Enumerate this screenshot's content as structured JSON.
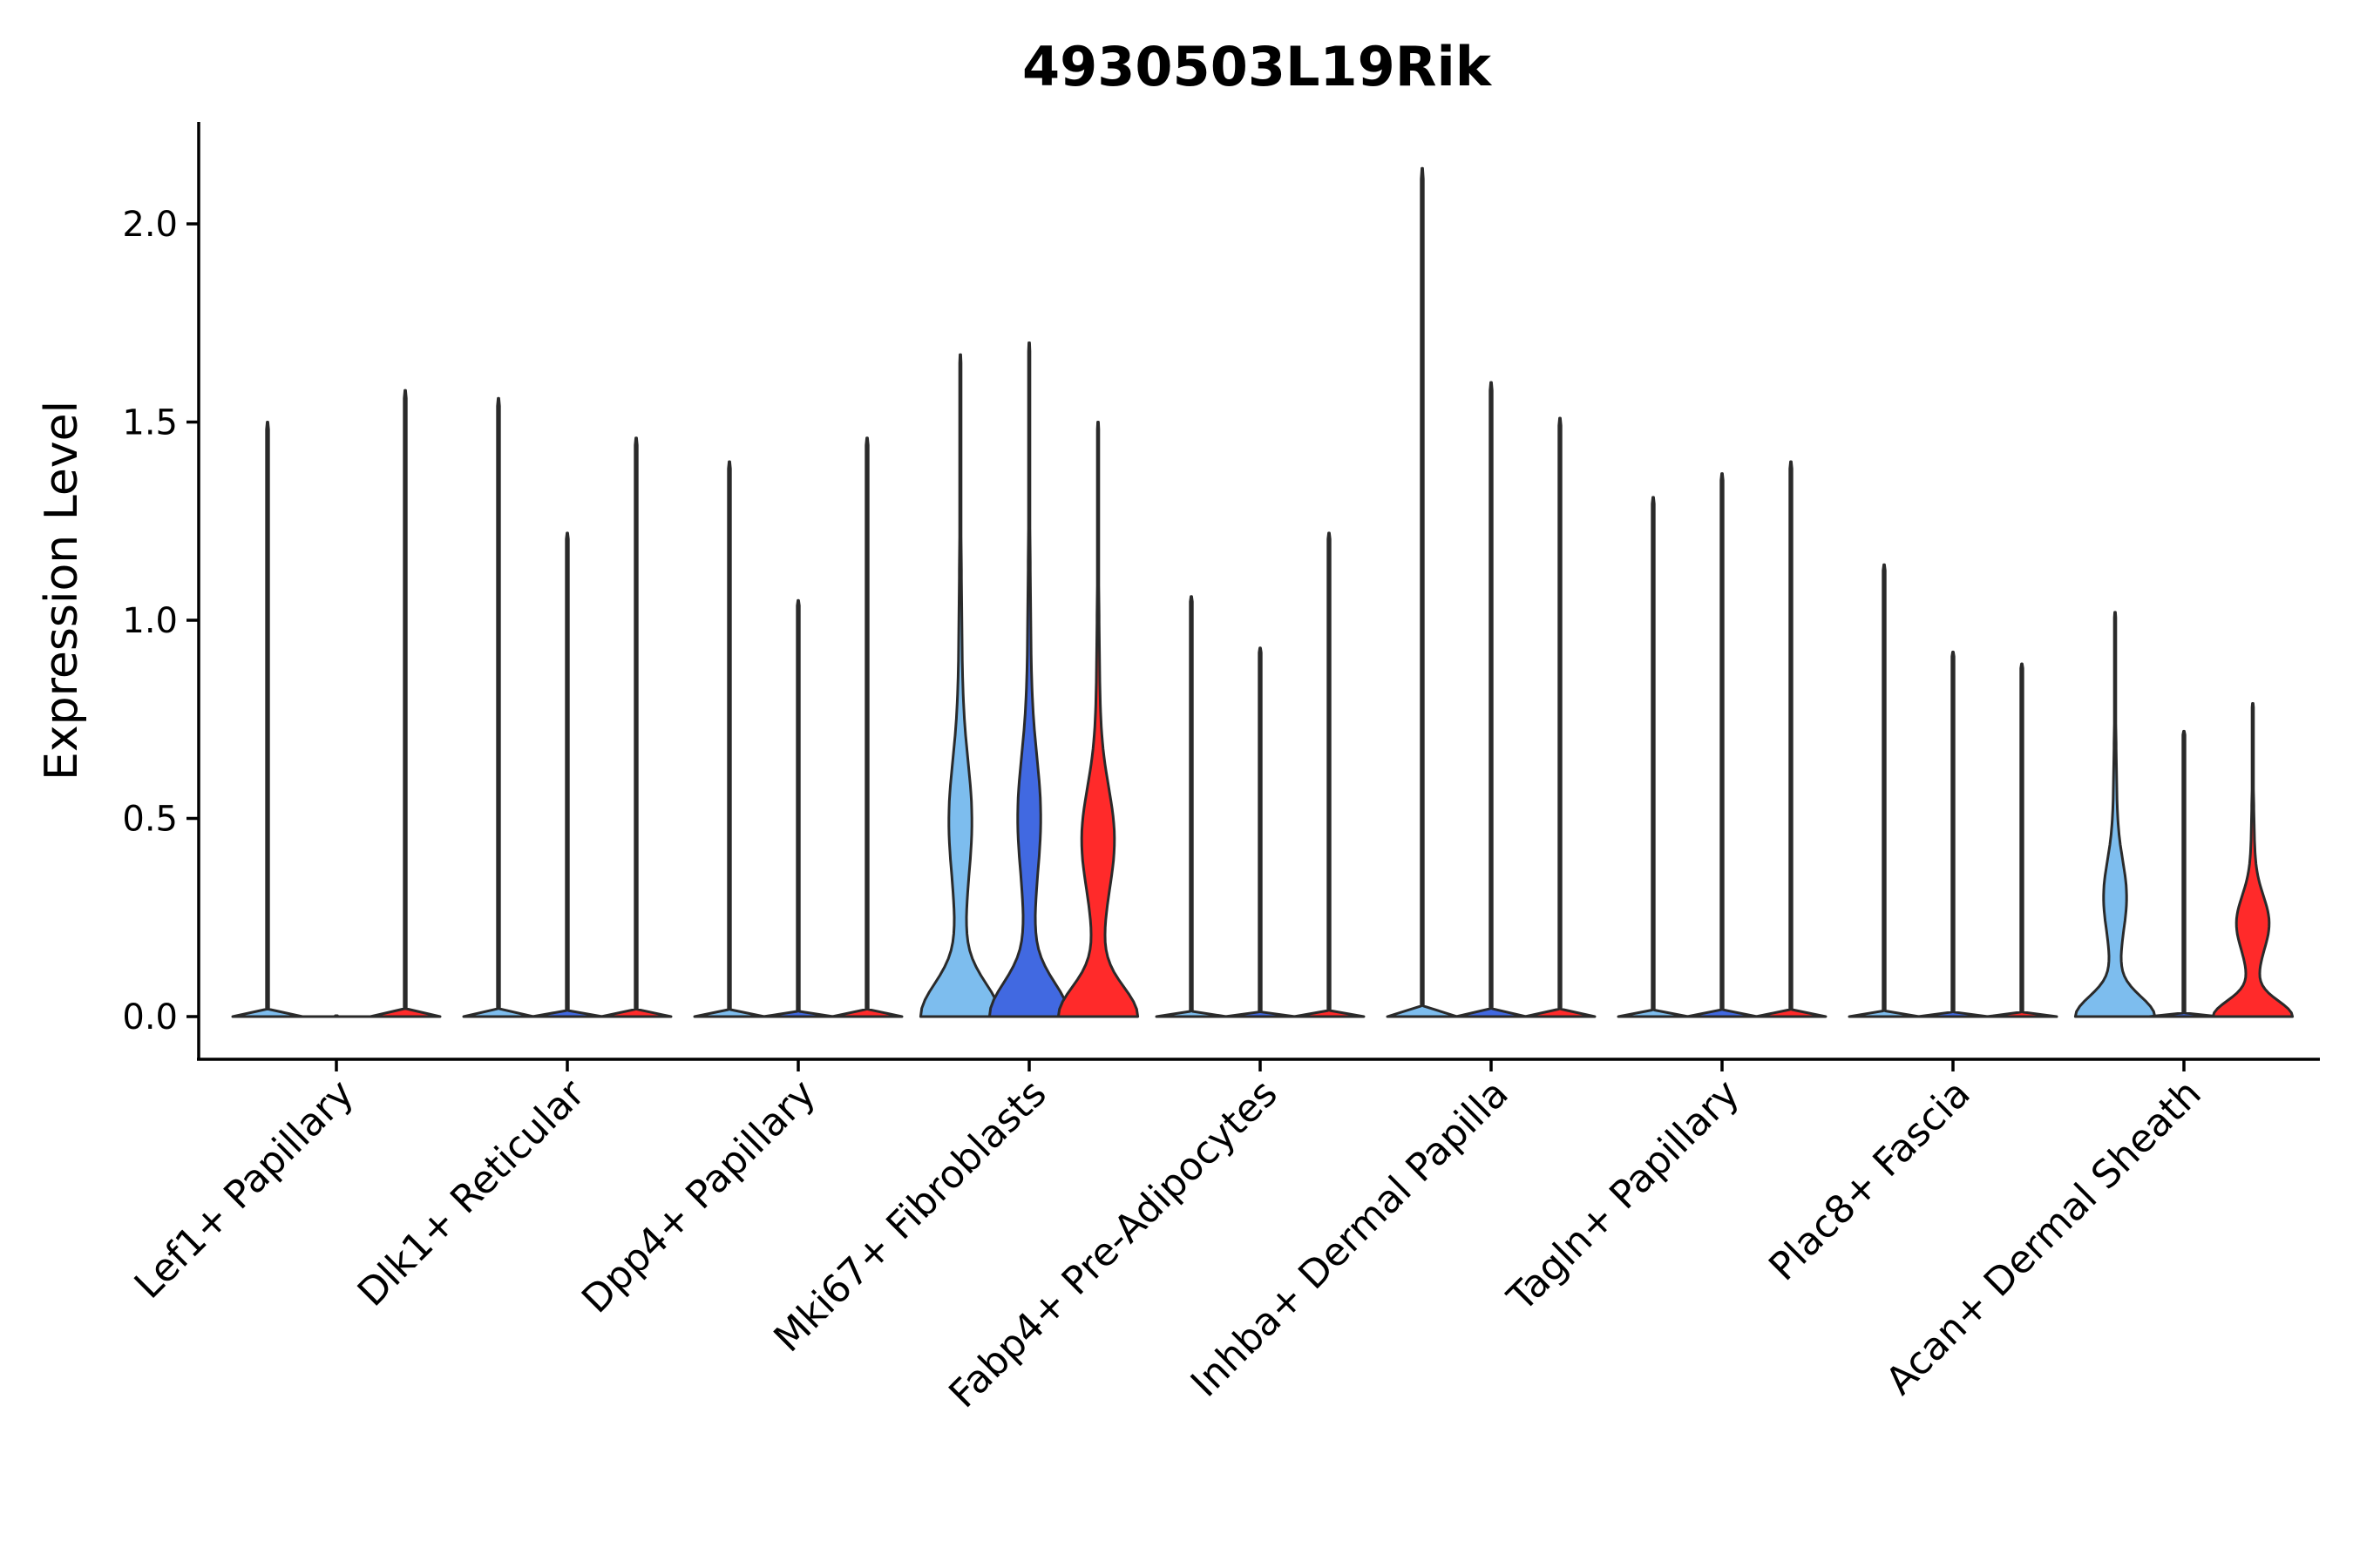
{
  "chart_data": {
    "type": "violin",
    "title": "4930503L19Rik",
    "xlabel": "",
    "ylabel": "Expression Level",
    "ylim": [
      -0.11,
      2.25
    ],
    "yticks": [
      0.0,
      0.5,
      1.0,
      1.5,
      2.0
    ],
    "ytick_labels": [
      "0.0",
      "0.5",
      "1.0",
      "1.5",
      "2.0"
    ],
    "grid": false,
    "legend": "none",
    "series_colors": [
      "#7dbdee",
      "#4169e1",
      "#ff2a2a"
    ],
    "categories": [
      "Lef1+ Papillary",
      "Dlk1+ Reticular",
      "Dpp4+ Papillary",
      "Mki67+ Fibroblasts",
      "Fabp4+ Pre-Adipocytes",
      "Inhba+ Dermal Papilla",
      "Tagln+ Papillary",
      "Plac8+ Fascia",
      "Acan+ Dermal Sheath"
    ],
    "groups": [
      {
        "category": "Lef1+ Papillary",
        "violins": [
          {
            "max": 1.5,
            "shape": "flat"
          },
          {
            "max": 0.0,
            "shape": "flat"
          },
          {
            "max": 1.58,
            "shape": "flat"
          }
        ]
      },
      {
        "category": "Dlk1+ Reticular",
        "violins": [
          {
            "max": 1.56,
            "shape": "flat"
          },
          {
            "max": 1.22,
            "shape": "flat"
          },
          {
            "max": 1.46,
            "shape": "flat"
          }
        ]
      },
      {
        "category": "Dpp4+ Papillary",
        "violins": [
          {
            "max": 1.4,
            "shape": "flat"
          },
          {
            "max": 1.05,
            "shape": "flat"
          },
          {
            "max": 1.46,
            "shape": "flat"
          }
        ]
      },
      {
        "category": "Mki67+ Fibroblasts",
        "violins": [
          {
            "max": 1.67,
            "shape": "dense"
          },
          {
            "max": 1.7,
            "shape": "dense"
          },
          {
            "max": 1.5,
            "shape": "dense"
          }
        ]
      },
      {
        "category": "Fabp4+ Pre-Adipocytes",
        "violins": [
          {
            "max": 1.06,
            "shape": "flat"
          },
          {
            "max": 0.93,
            "shape": "flat"
          },
          {
            "max": 1.22,
            "shape": "flat"
          }
        ]
      },
      {
        "category": "Inhba+ Dermal Papilla",
        "violins": [
          {
            "max": 2.14,
            "shape": "flat"
          },
          {
            "max": 1.6,
            "shape": "flat"
          },
          {
            "max": 1.51,
            "shape": "flat"
          }
        ]
      },
      {
        "category": "Tagln+ Papillary",
        "violins": [
          {
            "max": 1.31,
            "shape": "flat"
          },
          {
            "max": 1.37,
            "shape": "flat"
          },
          {
            "max": 1.4,
            "shape": "flat"
          }
        ]
      },
      {
        "category": "Plac8+ Fascia",
        "violins": [
          {
            "max": 1.14,
            "shape": "flat"
          },
          {
            "max": 0.92,
            "shape": "flat"
          },
          {
            "max": 0.89,
            "shape": "flat"
          }
        ]
      },
      {
        "category": "Acan+ Dermal Sheath",
        "violins": [
          {
            "max": 1.02,
            "shape": "dense"
          },
          {
            "max": 0.72,
            "shape": "flat"
          },
          {
            "max": 0.79,
            "shape": "dense"
          }
        ]
      }
    ]
  }
}
